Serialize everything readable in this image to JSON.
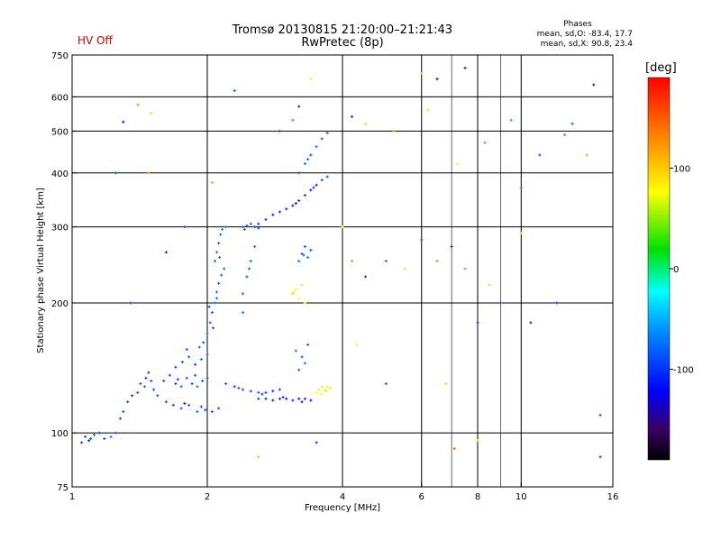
{
  "hv_status": "HV Off",
  "title_line1": "Tromsø 20130815 21:20:00–21:21:43",
  "title_line2": "RwPretec (8p)",
  "stats": {
    "heading": "Phases",
    "line_o": "mean, sd,O: -83.4, 17.7",
    "line_x": "mean, sd,X:  90.8, 23.4"
  },
  "colorbar": {
    "unit": "[deg]",
    "range": [
      -190,
      190
    ],
    "ticks": [
      {
        "v": 100,
        "label": "100"
      },
      {
        "v": 0,
        "label": "0"
      },
      {
        "v": -100,
        "label": "-100"
      }
    ]
  },
  "chart_data": {
    "type": "scatter",
    "title": "Tromsø 20130815 21:20:00–21:21:43",
    "subtitle": "RwPretec (8p)",
    "xlabel": "Frequency [MHz]",
    "ylabel": "Stationary phase Virtual Height [km]",
    "xscale": "log",
    "yscale": "log",
    "xlim": [
      1,
      16
    ],
    "ylim": [
      75,
      750
    ],
    "xticks": [
      {
        "v": 1,
        "label": "1"
      },
      {
        "v": 2,
        "label": "2"
      },
      {
        "v": 4,
        "label": "4"
      },
      {
        "v": 6,
        "label": "6"
      },
      {
        "v": 8,
        "label": "8"
      },
      {
        "v": 10,
        "label": "10"
      },
      {
        "v": 16,
        "label": "16"
      }
    ],
    "xgrid": [
      2,
      4,
      6,
      8,
      10
    ],
    "xminor": [
      7,
      9
    ],
    "yticks": [
      {
        "v": 75,
        "label": "75"
      },
      {
        "v": 100,
        "label": "100"
      },
      {
        "v": 200,
        "label": "200"
      },
      {
        "v": 300,
        "label": "300"
      },
      {
        "v": 400,
        "label": "400"
      },
      {
        "v": 500,
        "label": "500"
      },
      {
        "v": 600,
        "label": "600"
      },
      {
        "v": 750,
        "label": "750"
      }
    ],
    "ygrid": [
      100,
      200,
      300,
      400,
      500,
      600
    ],
    "color_by": "phase [deg]",
    "points": [
      [
        1.07,
        98,
        -95
      ],
      [
        1.1,
        97,
        -90
      ],
      [
        1.12,
        99,
        -85
      ],
      [
        1.15,
        100,
        -100
      ],
      [
        1.18,
        97,
        -95
      ],
      [
        1.22,
        98,
        -80
      ],
      [
        1.25,
        100,
        -90
      ],
      [
        1.09,
        96,
        -110
      ],
      [
        1.3,
        112,
        -95
      ],
      [
        1.33,
        118,
        -100
      ],
      [
        1.36,
        122,
        -105
      ],
      [
        1.4,
        124,
        -95
      ],
      [
        1.42,
        130,
        -90
      ],
      [
        1.46,
        134,
        -100
      ],
      [
        1.48,
        138,
        -110
      ],
      [
        1.52,
        126,
        -95
      ],
      [
        1.55,
        122,
        -100
      ],
      [
        1.45,
        128,
        -85
      ],
      [
        1.5,
        132,
        -92
      ],
      [
        1.6,
        132,
        -90
      ],
      [
        1.65,
        136,
        -95
      ],
      [
        1.7,
        130,
        -100
      ],
      [
        1.75,
        128,
        -85
      ],
      [
        1.8,
        134,
        -92
      ],
      [
        1.85,
        130,
        -98
      ],
      [
        1.9,
        128,
        -80
      ],
      [
        1.95,
        132,
        -88
      ],
      [
        2.0,
        134,
        -95
      ],
      [
        1.72,
        133,
        -104
      ],
      [
        1.88,
        136,
        -90
      ],
      [
        1.62,
        118,
        -95
      ],
      [
        1.68,
        116,
        -100
      ],
      [
        1.75,
        114,
        -90
      ],
      [
        1.82,
        116,
        -95
      ],
      [
        1.9,
        112,
        -85
      ],
      [
        1.98,
        113,
        -100
      ],
      [
        2.05,
        112,
        -95
      ],
      [
        2.12,
        114,
        -90
      ],
      [
        1.78,
        117,
        -110
      ],
      [
        1.94,
        115,
        -92
      ],
      [
        1.7,
        142,
        -95
      ],
      [
        1.76,
        146,
        -90
      ],
      [
        1.82,
        150,
        -85
      ],
      [
        1.88,
        144,
        -100
      ],
      [
        1.94,
        148,
        -80
      ],
      [
        2.0,
        152,
        -90
      ],
      [
        1.8,
        156,
        -95
      ],
      [
        1.92,
        158,
        -88
      ],
      [
        1.96,
        162,
        -90
      ],
      [
        2.0,
        170,
        -85
      ],
      [
        2.03,
        180,
        -80
      ],
      [
        2.05,
        190,
        -90
      ],
      [
        2.08,
        200,
        -85
      ],
      [
        2.1,
        212,
        -80
      ],
      [
        2.12,
        222,
        -92
      ],
      [
        2.15,
        232,
        -85
      ],
      [
        2.18,
        240,
        -80
      ],
      [
        2.02,
        196,
        -88
      ],
      [
        2.06,
        175,
        -95
      ],
      [
        2.1,
        205,
        -80
      ],
      [
        2.08,
        250,
        -80
      ],
      [
        2.1,
        262,
        -75
      ],
      [
        2.12,
        275,
        -85
      ],
      [
        2.14,
        288,
        -80
      ],
      [
        2.16,
        296,
        -70
      ],
      [
        2.2,
        300,
        -75
      ],
      [
        2.13,
        255,
        -82
      ],
      [
        2.2,
        130,
        -95
      ],
      [
        2.3,
        128,
        -100
      ],
      [
        2.4,
        126,
        -90
      ],
      [
        2.5,
        125,
        -95
      ],
      [
        2.6,
        124,
        -85
      ],
      [
        2.7,
        124,
        -100
      ],
      [
        2.8,
        125,
        -110
      ],
      [
        2.9,
        126,
        -95
      ],
      [
        2.35,
        127,
        -90
      ],
      [
        2.65,
        123,
        -100
      ],
      [
        2.6,
        120,
        -110
      ],
      [
        2.7,
        120,
        -115
      ],
      [
        2.8,
        119,
        -120
      ],
      [
        2.9,
        120,
        -115
      ],
      [
        3.0,
        120,
        -118
      ],
      [
        3.1,
        119,
        -112
      ],
      [
        3.2,
        120,
        -120
      ],
      [
        3.3,
        120,
        -115
      ],
      [
        3.4,
        119,
        -118
      ],
      [
        2.95,
        121,
        -110
      ],
      [
        3.25,
        118,
        -122
      ],
      [
        3.5,
        124,
        80
      ],
      [
        3.55,
        126,
        85
      ],
      [
        3.6,
        128,
        90
      ],
      [
        3.65,
        126,
        85
      ],
      [
        3.7,
        128,
        80
      ],
      [
        3.75,
        127,
        90
      ],
      [
        3.58,
        123,
        75
      ],
      [
        3.68,
        125,
        88
      ],
      [
        2.4,
        300,
        -80
      ],
      [
        2.45,
        302,
        -90
      ],
      [
        2.5,
        305,
        -85
      ],
      [
        2.55,
        300,
        -95
      ],
      [
        2.6,
        298,
        -100
      ],
      [
        2.42,
        296,
        -88
      ],
      [
        2.6,
        305,
        -110
      ],
      [
        2.7,
        312,
        -100
      ],
      [
        2.8,
        320,
        -120
      ],
      [
        2.9,
        325,
        -110
      ],
      [
        3.0,
        330,
        -115
      ],
      [
        3.1,
        336,
        -120
      ],
      [
        3.2,
        345,
        -110
      ],
      [
        3.3,
        355,
        -100
      ],
      [
        3.4,
        365,
        -115
      ],
      [
        3.5,
        375,
        -120
      ],
      [
        3.6,
        385,
        -100
      ],
      [
        3.7,
        392,
        -95
      ],
      [
        3.15,
        340,
        -125
      ],
      [
        3.45,
        370,
        -105
      ],
      [
        3.2,
        400,
        -90
      ],
      [
        3.3,
        420,
        -80
      ],
      [
        3.4,
        440,
        -95
      ],
      [
        3.5,
        460,
        -85
      ],
      [
        3.6,
        480,
        -90
      ],
      [
        3.7,
        495,
        -80
      ],
      [
        3.35,
        430,
        -85
      ],
      [
        2.4,
        210,
        -80
      ],
      [
        2.45,
        230,
        -85
      ],
      [
        2.5,
        250,
        -75
      ],
      [
        2.55,
        270,
        -80
      ],
      [
        2.4,
        190,
        -75
      ],
      [
        2.48,
        240,
        -82
      ],
      [
        3.1,
        210,
        60
      ],
      [
        3.15,
        215,
        70
      ],
      [
        3.2,
        205,
        80
      ],
      [
        3.25,
        220,
        65
      ],
      [
        3.3,
        200,
        75
      ],
      [
        3.12,
        212,
        68
      ],
      [
        3.2,
        250,
        -80
      ],
      [
        3.25,
        260,
        -90
      ],
      [
        3.3,
        270,
        -85
      ],
      [
        3.35,
        255,
        -75
      ],
      [
        3.4,
        265,
        -95
      ],
      [
        3.28,
        258,
        -80
      ],
      [
        3.2,
        140,
        -90
      ],
      [
        3.25,
        150,
        -85
      ],
      [
        3.3,
        145,
        -80
      ],
      [
        3.35,
        160,
        -90
      ],
      [
        3.15,
        155,
        -75
      ],
      [
        1.05,
        95,
        -100
      ],
      [
        1.28,
        108,
        -95
      ],
      [
        1.35,
        200,
        -95
      ],
      [
        1.4,
        575,
        130
      ],
      [
        1.48,
        400,
        120
      ],
      [
        1.25,
        400,
        -90
      ],
      [
        1.3,
        525,
        -120
      ],
      [
        1.5,
        550,
        60
      ],
      [
        1.62,
        262,
        -120
      ],
      [
        1.78,
        300,
        -90
      ],
      [
        2.05,
        380,
        40
      ],
      [
        2.3,
        620,
        -90
      ],
      [
        2.9,
        500,
        -95
      ],
      [
        3.1,
        530,
        150
      ],
      [
        3.2,
        570,
        -120
      ],
      [
        3.4,
        660,
        90
      ],
      [
        4.2,
        540,
        -110
      ],
      [
        4.5,
        520,
        60
      ],
      [
        5.2,
        500,
        40
      ],
      [
        6.0,
        680,
        100
      ],
      [
        6.2,
        560,
        90
      ],
      [
        6.5,
        660,
        -120
      ],
      [
        7.5,
        700,
        -120
      ],
      [
        7.2,
        420,
        80
      ],
      [
        4.0,
        300,
        80
      ],
      [
        4.2,
        250,
        130
      ],
      [
        4.5,
        230,
        -100
      ],
      [
        5.0,
        250,
        -80
      ],
      [
        5.5,
        240,
        60
      ],
      [
        6.0,
        280,
        -90
      ],
      [
        6.5,
        250,
        130
      ],
      [
        7.0,
        270,
        -120
      ],
      [
        7.5,
        240,
        30
      ],
      [
        8.0,
        180,
        -110
      ],
      [
        8.5,
        220,
        60
      ],
      [
        9.0,
        200,
        -100
      ],
      [
        10.0,
        290,
        90
      ],
      [
        10.5,
        180,
        -120
      ],
      [
        11.0,
        440,
        -90
      ],
      [
        12.0,
        200,
        -110
      ],
      [
        13.0,
        520,
        -90
      ],
      [
        14.0,
        440,
        120
      ],
      [
        15.0,
        110,
        -95
      ],
      [
        15.0,
        88,
        -100
      ],
      [
        14.5,
        640,
        -120
      ],
      [
        12.5,
        490,
        150
      ],
      [
        4.3,
        160,
        80
      ],
      [
        3.5,
        95,
        -110
      ],
      [
        7.1,
        92,
        150
      ],
      [
        8.0,
        96,
        100
      ],
      [
        5.0,
        130,
        -90
      ],
      [
        6.8,
        130,
        60
      ],
      [
        9.5,
        530,
        -60
      ],
      [
        8.3,
        470,
        150
      ],
      [
        10.0,
        370,
        170
      ],
      [
        2.6,
        88,
        110
      ]
    ]
  }
}
